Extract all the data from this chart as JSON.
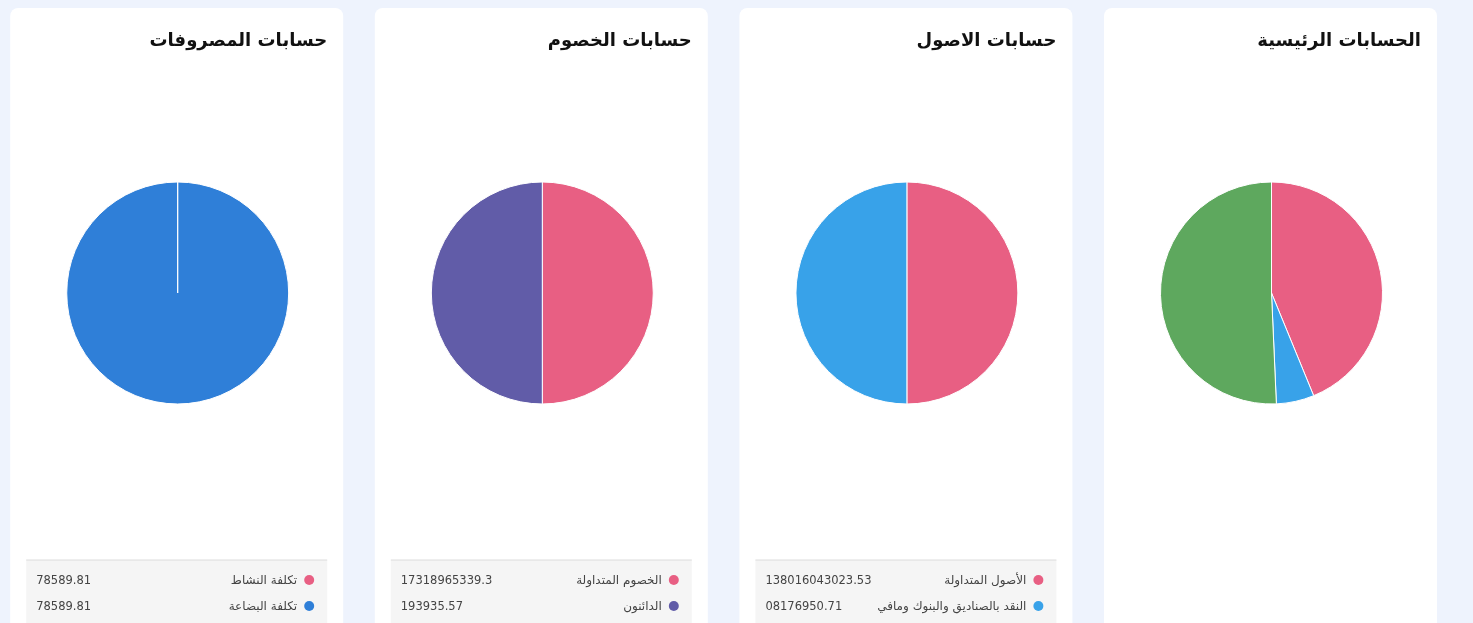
{
  "chart_data": [
    {
      "type": "pie",
      "title": "الحسابات الرئيسية",
      "categories": [
        null,
        null,
        null
      ],
      "values": [
        43.8,
        5.5,
        50.7
      ],
      "colors": [
        "#e85f83",
        "#38a2e9",
        "#5ea85e"
      ]
    },
    {
      "type": "pie",
      "title": "حسابات الاصول",
      "categories": [
        "الأصول المتداولة",
        "النقد بالصناديق والبنوك ومافي"
      ],
      "values": [
        50,
        50
      ],
      "colors": [
        "#e85f83",
        "#38a2e9"
      ],
      "annotations": [
        "138016043023.53",
        "08176950.71"
      ],
      "legend": "bottom"
    },
    {
      "type": "pie",
      "title": "حسابات الخصوم",
      "categories": [
        "الخصوم المتداولة",
        "الدائنون"
      ],
      "values": [
        50,
        50
      ],
      "colors": [
        "#e85f83",
        "#615ca8"
      ],
      "annotations": [
        "17318965339.3",
        "193935.57"
      ],
      "legend": "bottom"
    },
    {
      "type": "pie",
      "title": "حسابات المصروفات",
      "categories": [
        "تكلفة النشاط",
        "تكلفة البضاعة"
      ],
      "values": [
        0,
        100
      ],
      "colors": [
        "#e85f83",
        "#2f7fd8"
      ],
      "annotations": [
        "78589.81",
        "78589.81"
      ],
      "legend": "bottom"
    }
  ]
}
